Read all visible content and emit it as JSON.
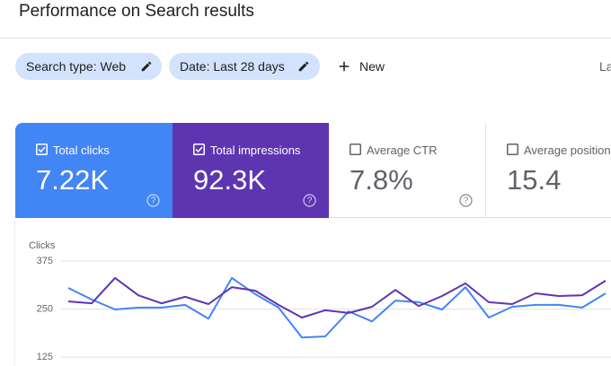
{
  "header": {
    "title": "Performance on Search results"
  },
  "filters": [
    "Search type: Web",
    "Date: Last 28 days"
  ],
  "new_button": "New",
  "cut_off_text": "La",
  "cards": [
    {
      "label": "Total clicks",
      "value": "7.22K"
    },
    {
      "label": "Total impressions",
      "value": "92.3K"
    },
    {
      "label": "Average CTR",
      "value": "7.8%"
    },
    {
      "label": "Average position",
      "value": "15.4"
    }
  ],
  "chart_data": {
    "type": "line",
    "y_label": "Clicks",
    "categories": [
      null,
      null,
      null,
      null,
      null,
      null,
      null,
      null,
      null,
      null,
      null,
      null,
      null,
      null,
      null,
      null,
      null,
      null,
      null,
      null,
      null,
      null,
      null,
      null
    ],
    "series": [
      {
        "color": "#4285f4",
        "values": [
          305,
          275,
          249,
          254,
          254,
          261,
          225,
          331,
          289,
          254,
          176,
          179,
          244,
          218,
          272,
          268,
          249,
          307,
          228,
          256,
          261,
          261,
          254,
          291
        ]
      },
      {
        "color": "#5e35b1",
        "values": [
          270,
          265,
          331,
          286,
          265,
          282,
          263,
          307,
          298,
          261,
          228,
          247,
          240,
          256,
          300,
          258,
          284,
          317,
          268,
          263,
          291,
          284,
          286,
          324
        ]
      }
    ],
    "ylim": [
      102,
      375
    ],
    "yticks": [
      125,
      250,
      375
    ],
    "grid": true
  }
}
